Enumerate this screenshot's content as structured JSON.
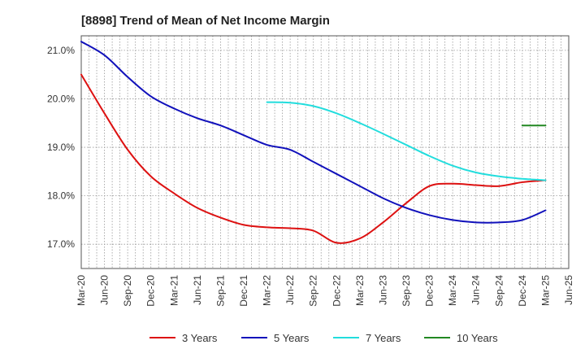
{
  "chart_data": {
    "type": "line",
    "title": "[8898]  Trend of Mean of Net Income Margin",
    "xlabel": "",
    "ylabel": "",
    "x_ticks": [
      "Mar-20",
      "Jun-20",
      "Sep-20",
      "Dec-20",
      "Mar-21",
      "Jun-21",
      "Sep-21",
      "Dec-21",
      "Mar-22",
      "Jun-22",
      "Sep-22",
      "Dec-22",
      "Mar-23",
      "Jun-23",
      "Sep-23",
      "Dec-23",
      "Mar-24",
      "Jun-24",
      "Sep-24",
      "Dec-24",
      "Mar-25",
      "Jun-25"
    ],
    "y_ticks": [
      "17.0%",
      "18.0%",
      "19.0%",
      "20.0%",
      "21.0%"
    ],
    "y_tick_values": [
      17.0,
      18.0,
      19.0,
      20.0,
      21.0
    ],
    "ylim": [
      16.5,
      21.3
    ],
    "grid": true,
    "legend_position": "bottom",
    "series": [
      {
        "name": "3 Years",
        "color": "#dd1111",
        "x": [
          "Mar-20",
          "Jun-20",
          "Sep-20",
          "Dec-20",
          "Mar-21",
          "Jun-21",
          "Sep-21",
          "Dec-21",
          "Mar-22",
          "Jun-22",
          "Sep-22",
          "Dec-22",
          "Mar-23",
          "Jun-23",
          "Sep-23",
          "Dec-23",
          "Mar-24",
          "Jun-24",
          "Sep-24",
          "Dec-24",
          "Mar-25"
        ],
        "values": [
          20.5,
          19.7,
          18.95,
          18.4,
          18.05,
          17.75,
          17.55,
          17.4,
          17.35,
          17.33,
          17.28,
          17.03,
          17.12,
          17.45,
          17.85,
          18.2,
          18.25,
          18.22,
          18.2,
          18.28,
          18.32
        ]
      },
      {
        "name": "5 Years",
        "color": "#1111bb",
        "x": [
          "Mar-20",
          "Jun-20",
          "Sep-20",
          "Dec-20",
          "Mar-21",
          "Jun-21",
          "Sep-21",
          "Dec-21",
          "Mar-22",
          "Jun-22",
          "Sep-22",
          "Dec-22",
          "Mar-23",
          "Jun-23",
          "Sep-23",
          "Dec-23",
          "Mar-24",
          "Jun-24",
          "Sep-24",
          "Dec-24",
          "Mar-25"
        ],
        "values": [
          21.18,
          20.9,
          20.45,
          20.05,
          19.8,
          19.6,
          19.45,
          19.25,
          19.05,
          18.95,
          18.7,
          18.45,
          18.2,
          17.95,
          17.75,
          17.6,
          17.5,
          17.45,
          17.45,
          17.5,
          17.7
        ]
      },
      {
        "name": "7 Years",
        "color": "#22dddd",
        "x": [
          "Mar-22",
          "Jun-22",
          "Sep-22",
          "Dec-22",
          "Mar-23",
          "Jun-23",
          "Sep-23",
          "Dec-23",
          "Mar-24",
          "Jun-24",
          "Sep-24",
          "Dec-24",
          "Mar-25"
        ],
        "values": [
          19.93,
          19.92,
          19.85,
          19.7,
          19.5,
          19.28,
          19.05,
          18.82,
          18.62,
          18.48,
          18.4,
          18.35,
          18.32
        ]
      },
      {
        "name": "10 Years",
        "color": "#228822",
        "x": [
          "Dec-24",
          "Mar-25"
        ],
        "values": [
          19.45,
          19.45
        ]
      }
    ]
  }
}
